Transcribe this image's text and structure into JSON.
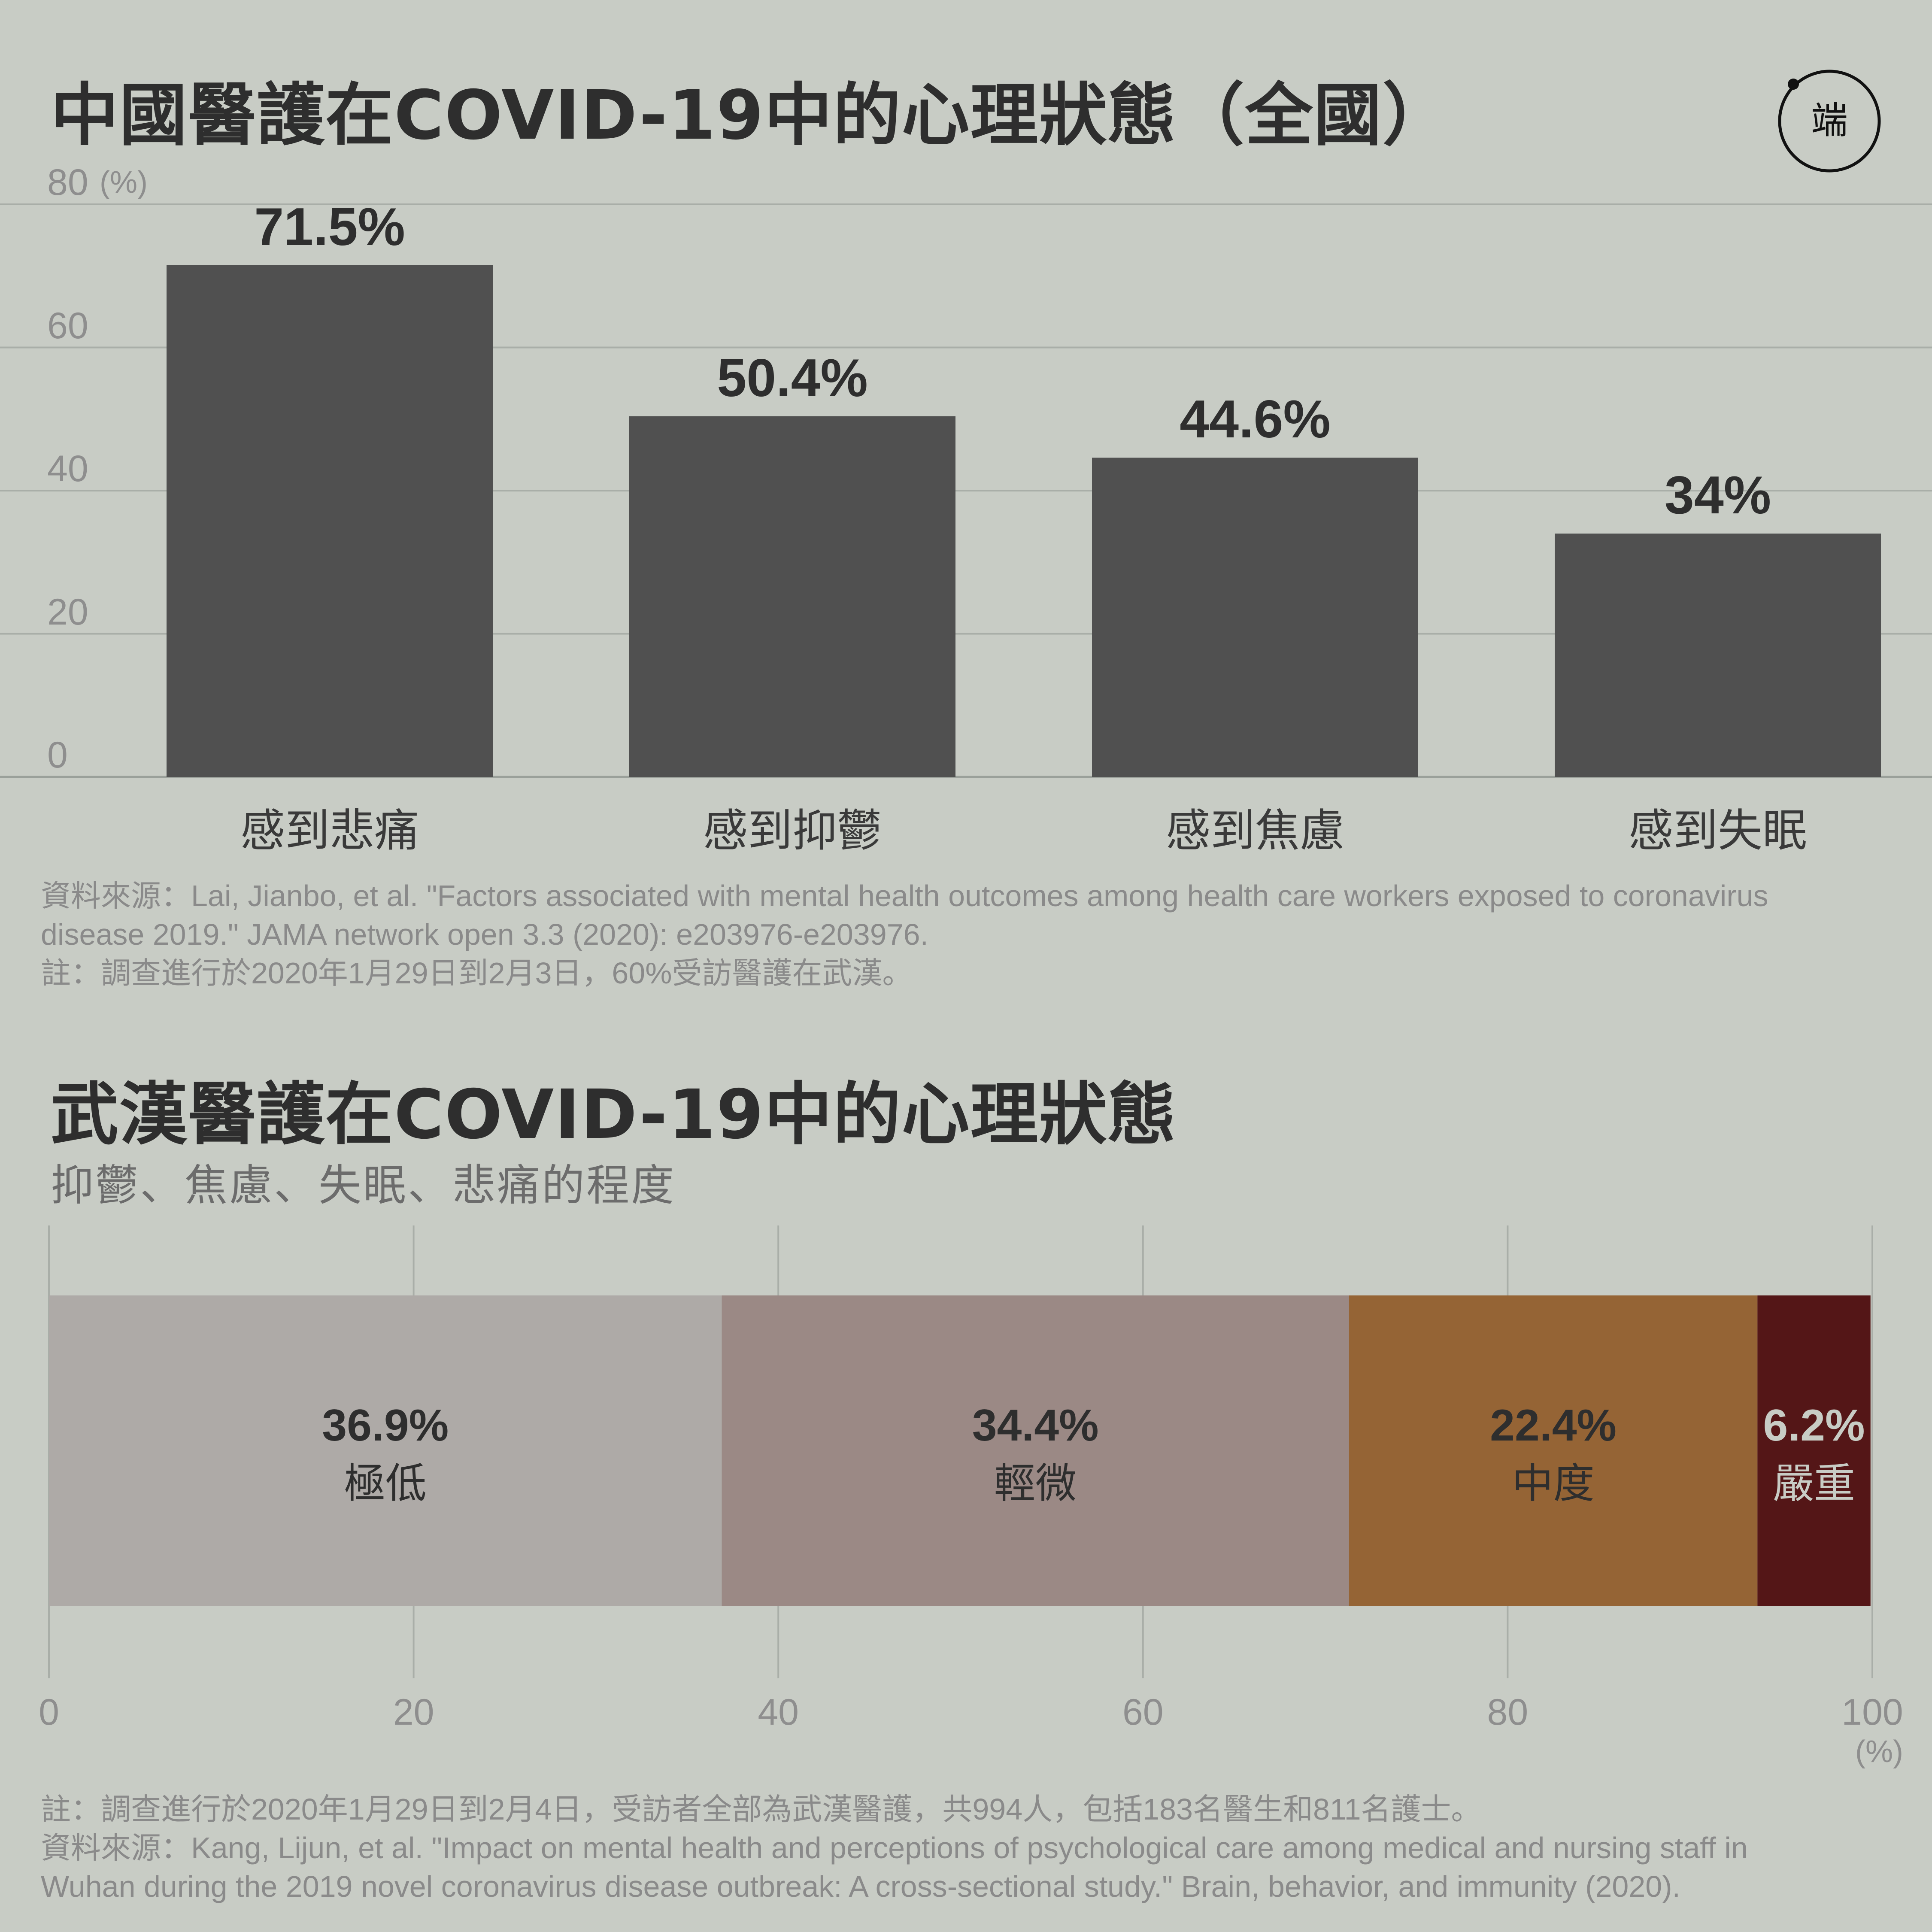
{
  "chart1": {
    "title": "中國醫護在COVID-19中的心理狀態（全國）",
    "y_unit": "(%)",
    "source_lines": [
      "資料來源：Lai, Jianbo, et al. \"Factors associated with mental health outcomes among health care workers exposed to coronavirus",
      "disease 2019.\" JAMA network open 3.3 (2020): e203976-e203976.",
      "註：調查進行於2020年1月29日到2月3日，60%受訪醫護在武漢。"
    ]
  },
  "chart2": {
    "title": "武漢醫護在COVID-19中的心理狀態",
    "subtitle": "抑鬱、焦慮、失眠、悲痛的程度",
    "x_unit": "(%)",
    "notes": [
      "註：調查進行於2020年1月29日到2月4日，受訪者全部為武漢醫護，共994人，包括183名醫生和811名護士。",
      "資料來源：Kang, Lijun, et al. \"Impact on mental health and perceptions of psychological care among medical and nursing staff in",
      "Wuhan during the 2019 novel coronavirus disease outbreak: A cross-sectional study.\" Brain, behavior, and immunity (2020)."
    ]
  },
  "logo": {
    "text": "端"
  },
  "chart_data": [
    {
      "type": "bar",
      "title": "中國醫護在COVID-19中的心理狀態（全國）",
      "categories": [
        "感到悲痛",
        "感到抑鬱",
        "感到焦慮",
        "感到失眠"
      ],
      "values": [
        71.5,
        50.4,
        44.6,
        34
      ],
      "value_labels": [
        "71.5%",
        "50.4%",
        "44.6%",
        "34%"
      ],
      "ylabel": "(%)",
      "ylim": [
        0,
        80
      ],
      "yticks": [
        0,
        20,
        40,
        60,
        80
      ],
      "bar_color": "#505050",
      "grid": true
    },
    {
      "type": "bar",
      "orientation": "horizontal-stacked",
      "title": "武漢醫護在COVID-19中的心理狀態",
      "subtitle": "抑鬱、焦慮、失眠、悲痛的程度",
      "series": [
        {
          "name": "極低",
          "value": 36.9,
          "label": "36.9%",
          "color": "#aeaaa7",
          "text_color": "#2e2e2e"
        },
        {
          "name": "輕微",
          "value": 34.4,
          "label": "34.4%",
          "color": "#9b8985",
          "text_color": "#2e2e2e"
        },
        {
          "name": "中度",
          "value": 22.4,
          "label": "22.4%",
          "color": "#956435",
          "text_color": "#2e2e2e"
        },
        {
          "name": "嚴重",
          "value": 6.2,
          "label": "6.2%",
          "color": "#541617",
          "text_color": "#c8ccc5"
        }
      ],
      "xlabel": "(%)",
      "xlim": [
        0,
        100
      ],
      "xticks": [
        0,
        20,
        40,
        60,
        80,
        100
      ],
      "grid": true
    }
  ]
}
